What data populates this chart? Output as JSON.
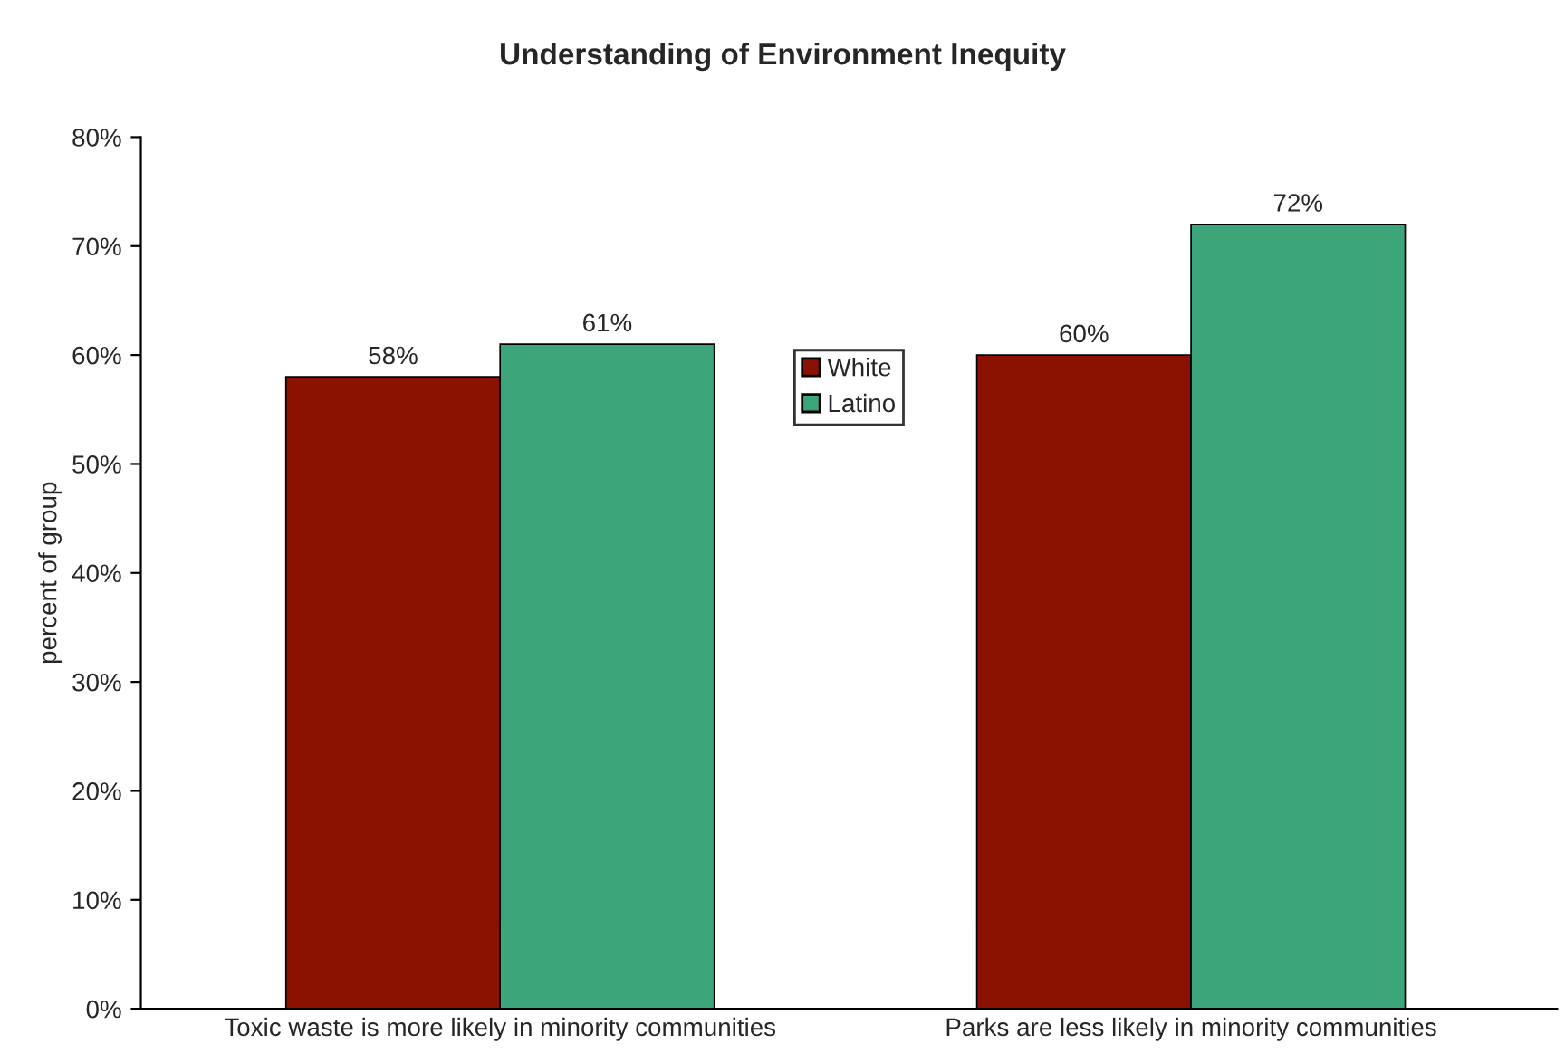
{
  "chart_data": {
    "type": "bar",
    "title": "Understanding of Environment Inequity",
    "ylabel": "percent of group",
    "categories": [
      "Toxic waste is more likely in minority communities",
      "Parks are less likely in minority communities"
    ],
    "series": [
      {
        "name": "White",
        "color": "#8b1200",
        "values": [
          58,
          60
        ],
        "value_labels": [
          "58%",
          "60%"
        ]
      },
      {
        "name": "Latino",
        "color": "#3ca57a",
        "values": [
          61,
          72
        ],
        "value_labels": [
          "61%",
          "72%"
        ]
      }
    ],
    "ylim": [
      0,
      80
    ],
    "yticks": [
      {
        "value": 0,
        "label": "0%"
      },
      {
        "value": 10,
        "label": "10%"
      },
      {
        "value": 20,
        "label": "20%"
      },
      {
        "value": 30,
        "label": "30%"
      },
      {
        "value": 40,
        "label": "40%"
      },
      {
        "value": 50,
        "label": "50%"
      },
      {
        "value": 60,
        "label": "60%"
      },
      {
        "value": 70,
        "label": "70%"
      },
      {
        "value": 80,
        "label": "80%"
      }
    ],
    "grid": false,
    "legend": "top"
  }
}
